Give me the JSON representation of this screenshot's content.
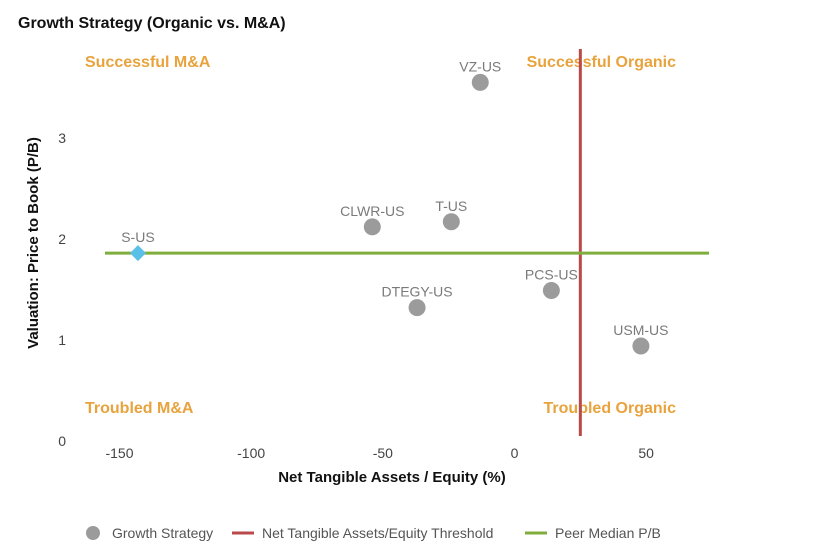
{
  "chart_data": {
    "type": "scatter",
    "title": "Growth Strategy (Organic vs. M&A)",
    "xlabel": "Net Tangible Assets / Equity (%)",
    "ylabel": "Valuation: Price to Book (P/B)",
    "xlim": [
      -165,
      75
    ],
    "ylim": [
      0,
      3.9
    ],
    "xticks": [
      -150,
      -100,
      -50,
      0,
      50
    ],
    "yticks": [
      0,
      1,
      2,
      3
    ],
    "grid": false,
    "legend_position": "bottom",
    "series": [
      {
        "name": "Growth Strategy",
        "marker": "circle",
        "color": "#9b9b9b",
        "points": [
          {
            "label": "VZ-US",
            "x": -13,
            "y": 3.55
          },
          {
            "label": "CLWR-US",
            "x": -54,
            "y": 2.12
          },
          {
            "label": "T-US",
            "x": -24,
            "y": 2.17
          },
          {
            "label": "PCS-US",
            "x": 14,
            "y": 1.49
          },
          {
            "label": "DTEGY-US",
            "x": -37,
            "y": 1.32
          },
          {
            "label": "USM-US",
            "x": 48,
            "y": 0.94
          }
        ]
      },
      {
        "name": "S-US",
        "marker": "diamond",
        "color": "#5bc0e8",
        "points": [
          {
            "label": "S-US",
            "x": -143,
            "y": 1.86
          }
        ]
      }
    ],
    "reference_lines": [
      {
        "name": "Net Tangible Assets/Equity Threshold",
        "orientation": "vertical",
        "value": 25,
        "color": "#b94a48"
      },
      {
        "name": "Peer Median P/B",
        "orientation": "horizontal",
        "value": 1.86,
        "color": "#7fae3c"
      }
    ],
    "quadrant_labels": [
      {
        "text": "Successful M&A",
        "position": "top-left"
      },
      {
        "text": "Successful Organic",
        "position": "top-right"
      },
      {
        "text": "Troubled M&A",
        "position": "bottom-left"
      },
      {
        "text": "Troubled Organic",
        "position": "bottom-right"
      }
    ],
    "quadrant_label_color": "#e8a33d",
    "legend": [
      {
        "label": "Growth Strategy",
        "symbol": "circle",
        "color": "#9b9b9b"
      },
      {
        "label": "Net Tangible Assets/Equity Threshold",
        "symbol": "line",
        "color": "#b94a48"
      },
      {
        "label": "Peer Median P/B",
        "symbol": "line",
        "color": "#7fae3c"
      }
    ]
  }
}
